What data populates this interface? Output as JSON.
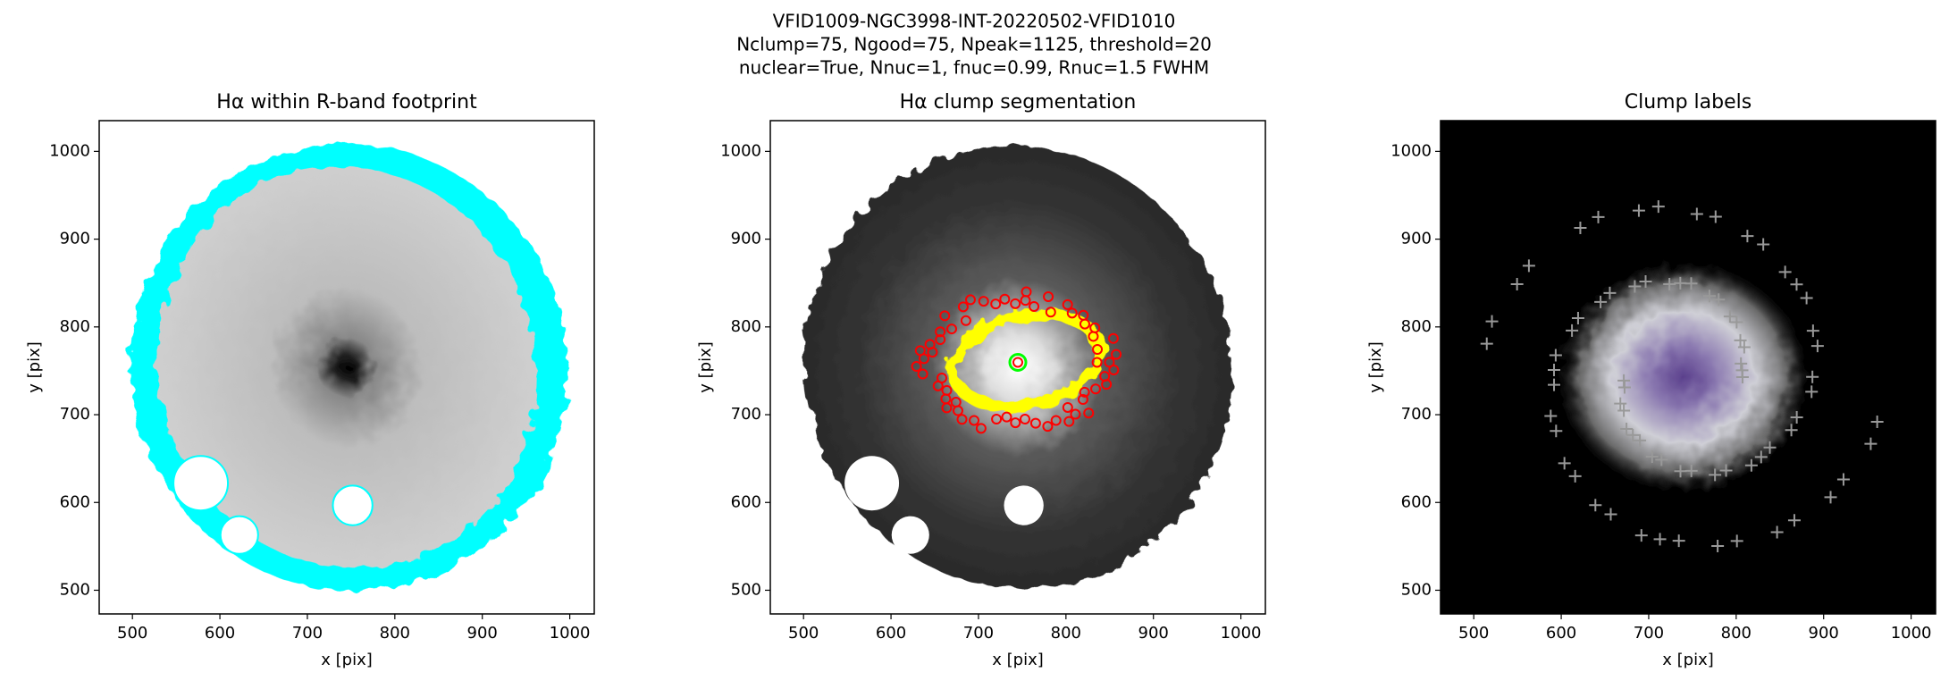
{
  "title": [
    "VFID1009-NGC3998-INT-20220502-VFID1010",
    "Nclump=75, Ngood=75, Npeak=1125, threshold=20",
    "nuclear=True, Nnuc=1, fnuc=0.99, Rnuc=1.5 FWHM"
  ],
  "chart_data": [
    {
      "type": "image",
      "title": "Hα within R-band footprint",
      "xlabel": "x [pix]",
      "ylabel": "y [pix]",
      "xlim": [
        462,
        1028
      ],
      "ylim": [
        473,
        1035
      ],
      "xticks": [
        500,
        600,
        700,
        800,
        900,
        1000
      ],
      "yticks": [
        500,
        600,
        700,
        800,
        900,
        1000
      ]
    },
    {
      "type": "image",
      "title": "Hα clump segmentation",
      "xlabel": "x [pix]",
      "ylabel": "y [pix]",
      "xlim": [
        462,
        1028
      ],
      "ylim": [
        473,
        1035
      ],
      "xticks": [
        500,
        600,
        700,
        800,
        900,
        1000
      ],
      "yticks": [
        500,
        600,
        700,
        800,
        900,
        1000
      ]
    },
    {
      "type": "image",
      "title": "Clump labels",
      "xlabel": "x [pix]",
      "ylabel": "y [pix]",
      "xlim": [
        462,
        1028
      ],
      "ylim": [
        473,
        1035
      ],
      "xticks": [
        500,
        600,
        700,
        800,
        900,
        1000
      ],
      "yticks": [
        500,
        600,
        700,
        800,
        900,
        1000
      ]
    }
  ]
}
